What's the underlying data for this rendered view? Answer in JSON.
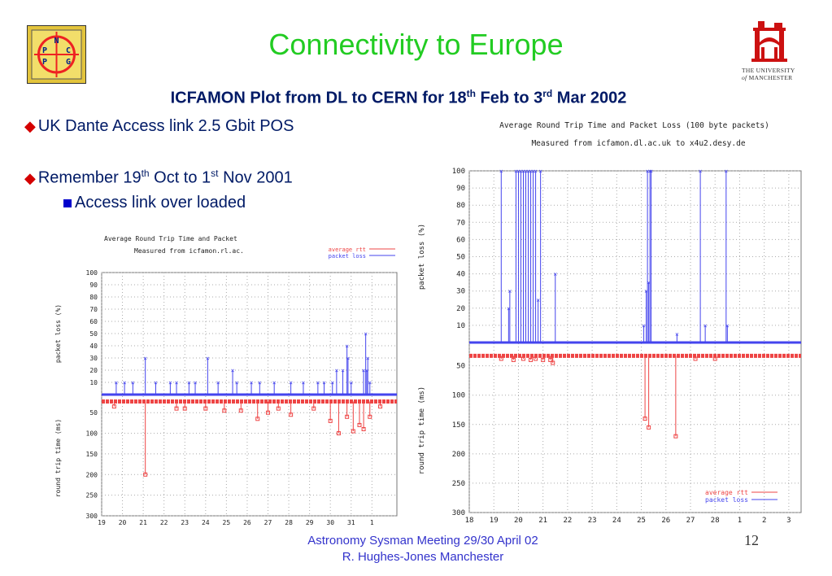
{
  "slide": {
    "title": "Connectivity to Europe",
    "subtitle": {
      "a": "ICFAMON Plot from DL to CERN for 18",
      "sup1": "th",
      "b": " Feb to 3",
      "sup2": "rd",
      "c": " Mar 2002"
    },
    "bullets": [
      {
        "text": "UK Dante Access link 2.5 Gbit POS"
      },
      {
        "a": "Remember 19",
        "sup1": "th",
        "b": " Oct to 1",
        "sup2": "st",
        "c": " Nov 2001"
      }
    ],
    "sub_bullet": "Access link over loaded",
    "footer_line1": "Astronomy Sysman Meeting  29/30 April 02",
    "footer_line2": "R. Hughes-Jones  Manchester",
    "page_number": "12",
    "colors": {
      "title": "#22cc22",
      "rtt": "#ee4444",
      "loss": "#4444ee",
      "bullet": "#d40000"
    }
  },
  "logos": {
    "npg": {
      "letters": [
        "N",
        "P",
        "C",
        "P",
        "G"
      ]
    },
    "university": {
      "line1": "THE UNIVERSITY",
      "line2_a": "of",
      "line2_b": " MANCHESTER"
    }
  },
  "chart_data": [
    {
      "type": "line",
      "title": "Average Round Trip Time and Packet",
      "subtitle": "Measured from icfamon.rl.ac.",
      "legend": [
        "average rtt",
        "packet loss"
      ],
      "legend_position": "top-right",
      "x_ticks": [
        "19",
        "20",
        "21",
        "22",
        "23",
        "24",
        "25",
        "26",
        "27",
        "28",
        "29",
        "30",
        "31",
        "1"
      ],
      "xlim": [
        19,
        33.2
      ],
      "loss_ylabel": "packet loss (%)",
      "loss_ticks": [
        "100",
        "90",
        "80",
        "70",
        "60",
        "50",
        "40",
        "30",
        "20",
        "10"
      ],
      "loss_ylim": [
        0,
        100
      ],
      "rtt_ylabel": "round trip time (ms)",
      "rtt_ticks": [
        "50",
        "100",
        "150",
        "200",
        "250",
        "300"
      ],
      "rtt_ylim": [
        20,
        300
      ],
      "series": [
        {
          "name": "packet loss",
          "baseline": 0,
          "spikes": [
            [
              19.7,
              10
            ],
            [
              20.1,
              10
            ],
            [
              20.5,
              10
            ],
            [
              21.1,
              30
            ],
            [
              21.6,
              10
            ],
            [
              22.3,
              10
            ],
            [
              22.6,
              10
            ],
            [
              23.2,
              10
            ],
            [
              23.5,
              10
            ],
            [
              24.1,
              30
            ],
            [
              24.6,
              10
            ],
            [
              25.3,
              20
            ],
            [
              25.5,
              10
            ],
            [
              26.2,
              10
            ],
            [
              26.6,
              10
            ],
            [
              27.3,
              10
            ],
            [
              28.1,
              10
            ],
            [
              28.7,
              10
            ],
            [
              29.4,
              10
            ],
            [
              29.7,
              10
            ],
            [
              30.1,
              10
            ],
            [
              30.3,
              20
            ],
            [
              30.6,
              20
            ],
            [
              30.8,
              40
            ],
            [
              30.85,
              30
            ],
            [
              31.0,
              10
            ],
            [
              31.6,
              20
            ],
            [
              31.7,
              50
            ],
            [
              31.75,
              20
            ],
            [
              31.8,
              30
            ],
            [
              31.9,
              10
            ]
          ]
        },
        {
          "name": "average rtt",
          "baseline": 23,
          "dips": [
            [
              19.6,
              35
            ],
            [
              21.1,
              200
            ],
            [
              22.6,
              40
            ],
            [
              23.0,
              40
            ],
            [
              24.0,
              40
            ],
            [
              24.9,
              45
            ],
            [
              25.7,
              45
            ],
            [
              26.5,
              65
            ],
            [
              27.0,
              50
            ],
            [
              27.5,
              40
            ],
            [
              28.1,
              55
            ],
            [
              29.2,
              40
            ],
            [
              30.0,
              70
            ],
            [
              30.4,
              100
            ],
            [
              30.8,
              60
            ],
            [
              31.1,
              95
            ],
            [
              31.4,
              80
            ],
            [
              31.6,
              90
            ],
            [
              31.9,
              60
            ],
            [
              32.4,
              35
            ]
          ]
        }
      ]
    },
    {
      "type": "line",
      "title": "Average Round Trip Time and Packet Loss (100 byte packets)",
      "subtitle": "Measured from icfamon.dl.ac.uk to x4u2.desy.de",
      "legend": [
        "average rtt",
        "packet loss"
      ],
      "legend_position": "bottom-right",
      "x_ticks": [
        "18",
        "19",
        "20",
        "21",
        "22",
        "23",
        "24",
        "25",
        "26",
        "27",
        "28",
        "1",
        "2",
        "3"
      ],
      "xlim": [
        18,
        31.5
      ],
      "loss_ylabel": "packet loss (%)",
      "loss_ticks": [
        "100",
        "90",
        "80",
        "70",
        "60",
        "50",
        "40",
        "30",
        "20",
        "10"
      ],
      "loss_ylim": [
        0,
        100
      ],
      "rtt_ylabel": "round trip time (ms)",
      "rtt_ticks": [
        "50",
        "100",
        "150",
        "200",
        "250",
        "300"
      ],
      "rtt_ylim": [
        20,
        300
      ],
      "series": [
        {
          "name": "packet loss",
          "baseline": 0,
          "spikes": [
            [
              19.3,
              100
            ],
            [
              19.6,
              20
            ],
            [
              19.65,
              30
            ],
            [
              19.9,
              100
            ],
            [
              20.0,
              100
            ],
            [
              20.1,
              100
            ],
            [
              20.2,
              100
            ],
            [
              20.3,
              100
            ],
            [
              20.4,
              100
            ],
            [
              20.5,
              100
            ],
            [
              20.6,
              100
            ],
            [
              20.7,
              100
            ],
            [
              20.8,
              25
            ],
            [
              20.9,
              100
            ],
            [
              21.5,
              40
            ],
            [
              25.1,
              10
            ],
            [
              25.2,
              30
            ],
            [
              25.25,
              100
            ],
            [
              25.3,
              35
            ],
            [
              25.35,
              100
            ],
            [
              25.4,
              100
            ],
            [
              26.45,
              5
            ],
            [
              27.4,
              100
            ],
            [
              27.6,
              10
            ],
            [
              28.45,
              100
            ],
            [
              28.5,
              10
            ]
          ]
        },
        {
          "name": "average rtt",
          "baseline": 33,
          "dips": [
            [
              19.3,
              38
            ],
            [
              19.8,
              40
            ],
            [
              20.2,
              38
            ],
            [
              20.5,
              40
            ],
            [
              20.7,
              38
            ],
            [
              21.0,
              40
            ],
            [
              21.3,
              40
            ],
            [
              21.4,
              45
            ],
            [
              25.15,
              140
            ],
            [
              25.3,
              155
            ],
            [
              26.4,
              170
            ],
            [
              27.2,
              38
            ],
            [
              28.0,
              38
            ]
          ]
        }
      ]
    }
  ]
}
